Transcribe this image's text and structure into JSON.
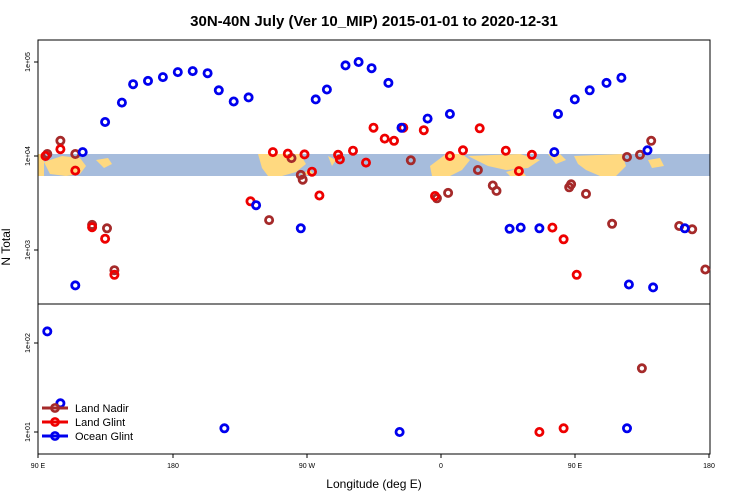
{
  "chart_data": {
    "type": "scatter",
    "title": "30N-40N July (Ver 10_MIP)   2015-01-01 to 2020-12-31",
    "xlabel": "Longitude (deg E)",
    "ylabel": "N Total",
    "x_ticks": [
      "90 E",
      "180",
      "90 W",
      "0",
      "90 E",
      "180"
    ],
    "y_ticks": [
      "1e+01",
      "1e+02",
      "1e+03",
      "1e+04",
      "1e+05"
    ],
    "xlim": [
      90,
      450
    ],
    "y_scale": "log",
    "grid": false,
    "legend_position": "bottom-left",
    "map_strip": {
      "land_color": "#ffd980",
      "ocean_color": "#a6bcdc"
    },
    "series": [
      {
        "name": "Land Nadir",
        "color": "#a52a2a",
        "points": [
          [
            95,
            10500
          ],
          [
            102,
            14500
          ],
          [
            110,
            10500
          ],
          [
            119,
            1850
          ],
          [
            127,
            1700
          ],
          [
            131,
            610
          ],
          [
            214,
            2080
          ],
          [
            226,
            9500
          ],
          [
            231,
            6300
          ],
          [
            232,
            5600
          ],
          [
            290,
            9000
          ],
          [
            304,
            3550
          ],
          [
            310,
            4050
          ],
          [
            326,
            7100
          ],
          [
            334,
            4850
          ],
          [
            336,
            4250
          ],
          [
            375,
            4650
          ],
          [
            376,
            5000
          ],
          [
            384,
            3950
          ],
          [
            398,
            1900
          ],
          [
            406,
            9750
          ],
          [
            413,
            10300
          ],
          [
            419,
            14500
          ],
          [
            434,
            1800
          ],
          [
            441,
            1660
          ],
          [
            448,
            620
          ],
          [
            414,
            52
          ]
        ]
      },
      {
        "name": "Land Glint",
        "color": "#ee0000",
        "points": [
          [
            94,
            10000
          ],
          [
            102,
            11800
          ],
          [
            110,
            7000
          ],
          [
            119,
            1750
          ],
          [
            126,
            1320
          ],
          [
            131,
            545
          ],
          [
            204,
            3300
          ],
          [
            216,
            11000
          ],
          [
            224,
            10600
          ],
          [
            233,
            10400
          ],
          [
            237,
            6800
          ],
          [
            241,
            3800
          ],
          [
            251,
            10300
          ],
          [
            252,
            9200
          ],
          [
            259,
            11400
          ],
          [
            266,
            8500
          ],
          [
            270,
            20000
          ],
          [
            276,
            15300
          ],
          [
            281,
            14500
          ],
          [
            286,
            20000
          ],
          [
            297,
            18800
          ],
          [
            303,
            3750
          ],
          [
            311,
            10000
          ],
          [
            318,
            11500
          ],
          [
            327,
            19700
          ],
          [
            341,
            11400
          ],
          [
            348,
            6900
          ],
          [
            355,
            10300
          ],
          [
            366,
            1730
          ],
          [
            372,
            1300
          ],
          [
            379,
            545
          ],
          [
            359,
            10
          ],
          [
            372,
            11
          ]
        ]
      },
      {
        "name": "Ocean Glint",
        "color": "#0000ee",
        "points": [
          [
            110,
            420
          ],
          [
            114,
            11000
          ],
          [
            126,
            23000
          ],
          [
            135,
            37000
          ],
          [
            141,
            58000
          ],
          [
            149,
            63000
          ],
          [
            157,
            69000
          ],
          [
            165,
            78000
          ],
          [
            173,
            80000
          ],
          [
            181,
            76000
          ],
          [
            187,
            50000
          ],
          [
            195,
            38000
          ],
          [
            203,
            42000
          ],
          [
            207,
            3000
          ],
          [
            231,
            1700
          ],
          [
            239,
            40000
          ],
          [
            245,
            51000
          ],
          [
            255,
            92000
          ],
          [
            262,
            100000
          ],
          [
            269,
            86000
          ],
          [
            278,
            60000
          ],
          [
            285,
            20000
          ],
          [
            299,
            25000
          ],
          [
            311,
            28000
          ],
          [
            343,
            1680
          ],
          [
            349,
            1730
          ],
          [
            359,
            1700
          ],
          [
            367,
            11000
          ],
          [
            369,
            28000
          ],
          [
            378,
            40000
          ],
          [
            386,
            50000
          ],
          [
            395,
            60000
          ],
          [
            403,
            68000
          ],
          [
            407,
            430
          ],
          [
            417,
            11500
          ],
          [
            437,
            1700
          ],
          [
            95,
            135
          ],
          [
            102,
            21
          ],
          [
            190,
            11
          ],
          [
            284,
            10
          ],
          [
            406,
            11
          ],
          [
            420,
            400
          ]
        ]
      }
    ],
    "legend": [
      "Land Nadir",
      "Land Glint",
      "Ocean Glint"
    ]
  }
}
